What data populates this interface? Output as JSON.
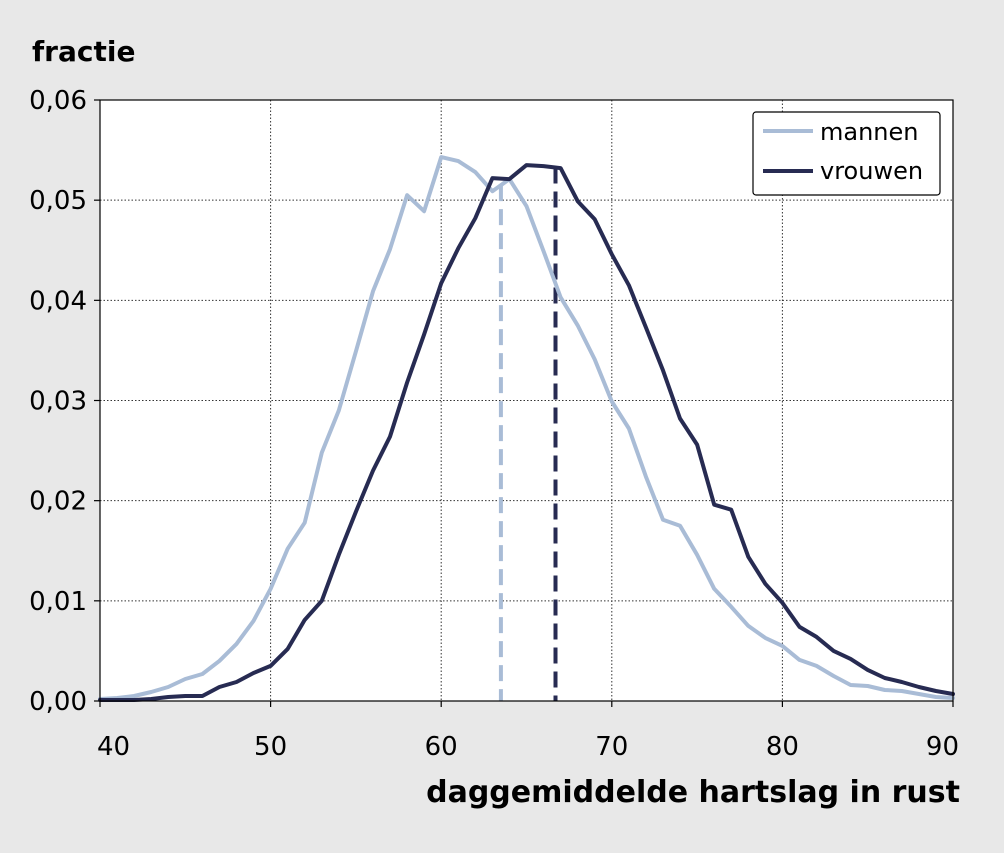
{
  "chart_data": {
    "type": "line",
    "xlabel": "daggemiddelde hartslag in rust",
    "ylabel": "fractie",
    "xlim": [
      40,
      90
    ],
    "ylim": [
      0,
      0.06
    ],
    "xticks": [
      40,
      50,
      60,
      70,
      80,
      90
    ],
    "xtick_labels": [
      "40",
      "50",
      "60",
      "70",
      "80",
      "90"
    ],
    "yticks": [
      0,
      0.01,
      0.02,
      0.03,
      0.04,
      0.05,
      0.06
    ],
    "ytick_labels": [
      "0,00",
      "0,01",
      "0,02",
      "0,03",
      "0,04",
      "0,05",
      "0,06"
    ],
    "grid": true,
    "legend_position": "top-right",
    "series": [
      {
        "name": "mannen",
        "color": "#a9bcd6",
        "mean": 63.5,
        "x": [
          40,
          41,
          42,
          43,
          44,
          45,
          46,
          47,
          48,
          49,
          50,
          51,
          52,
          53,
          54,
          55,
          56,
          57,
          58,
          59,
          60,
          61,
          62,
          63,
          64,
          65,
          66,
          67,
          68,
          69,
          70,
          71,
          72,
          73,
          74,
          75,
          76,
          77,
          78,
          79,
          80,
          81,
          82,
          83,
          84,
          85,
          86,
          87,
          88,
          89,
          90
        ],
        "values": [
          0.0002,
          0.0003,
          0.0005,
          0.0009,
          0.0014,
          0.0022,
          0.0027,
          0.004,
          0.0057,
          0.008,
          0.0112,
          0.0152,
          0.0178,
          0.0248,
          0.029,
          0.0349,
          0.0409,
          0.0451,
          0.0505,
          0.0489,
          0.0543,
          0.0539,
          0.0528,
          0.0509,
          0.0521,
          0.0494,
          0.0449,
          0.0403,
          0.0375,
          0.0341,
          0.0299,
          0.0272,
          0.0224,
          0.0181,
          0.0175,
          0.0146,
          0.0112,
          0.0094,
          0.0075,
          0.0063,
          0.0055,
          0.0041,
          0.0035,
          0.0025,
          0.0016,
          0.0015,
          0.0011,
          0.001,
          0.0007,
          0.0004,
          0.0003
        ]
      },
      {
        "name": "vrouwen",
        "color": "#272b52",
        "mean": 66.7,
        "x": [
          40,
          41,
          42,
          43,
          44,
          45,
          46,
          47,
          48,
          49,
          50,
          51,
          52,
          53,
          54,
          55,
          56,
          57,
          58,
          59,
          60,
          61,
          62,
          63,
          64,
          65,
          66,
          67,
          68,
          69,
          70,
          71,
          72,
          73,
          74,
          75,
          76,
          77,
          78,
          79,
          80,
          81,
          82,
          83,
          84,
          85,
          86,
          87,
          88,
          89,
          90
        ],
        "values": [
          0.0001,
          0.0001,
          0.0001,
          0.0002,
          0.0004,
          0.0005,
          0.0005,
          0.0014,
          0.0019,
          0.0028,
          0.0035,
          0.0052,
          0.0081,
          0.01,
          0.0146,
          0.0189,
          0.023,
          0.0264,
          0.0318,
          0.0366,
          0.0417,
          0.0452,
          0.0482,
          0.0522,
          0.0521,
          0.0535,
          0.0534,
          0.0532,
          0.0499,
          0.0481,
          0.0446,
          0.0415,
          0.0373,
          0.033,
          0.0282,
          0.0256,
          0.0196,
          0.0191,
          0.0144,
          0.0117,
          0.0098,
          0.0074,
          0.0064,
          0.005,
          0.0042,
          0.0031,
          0.0023,
          0.0019,
          0.0014,
          0.001,
          0.0007
        ]
      }
    ]
  }
}
